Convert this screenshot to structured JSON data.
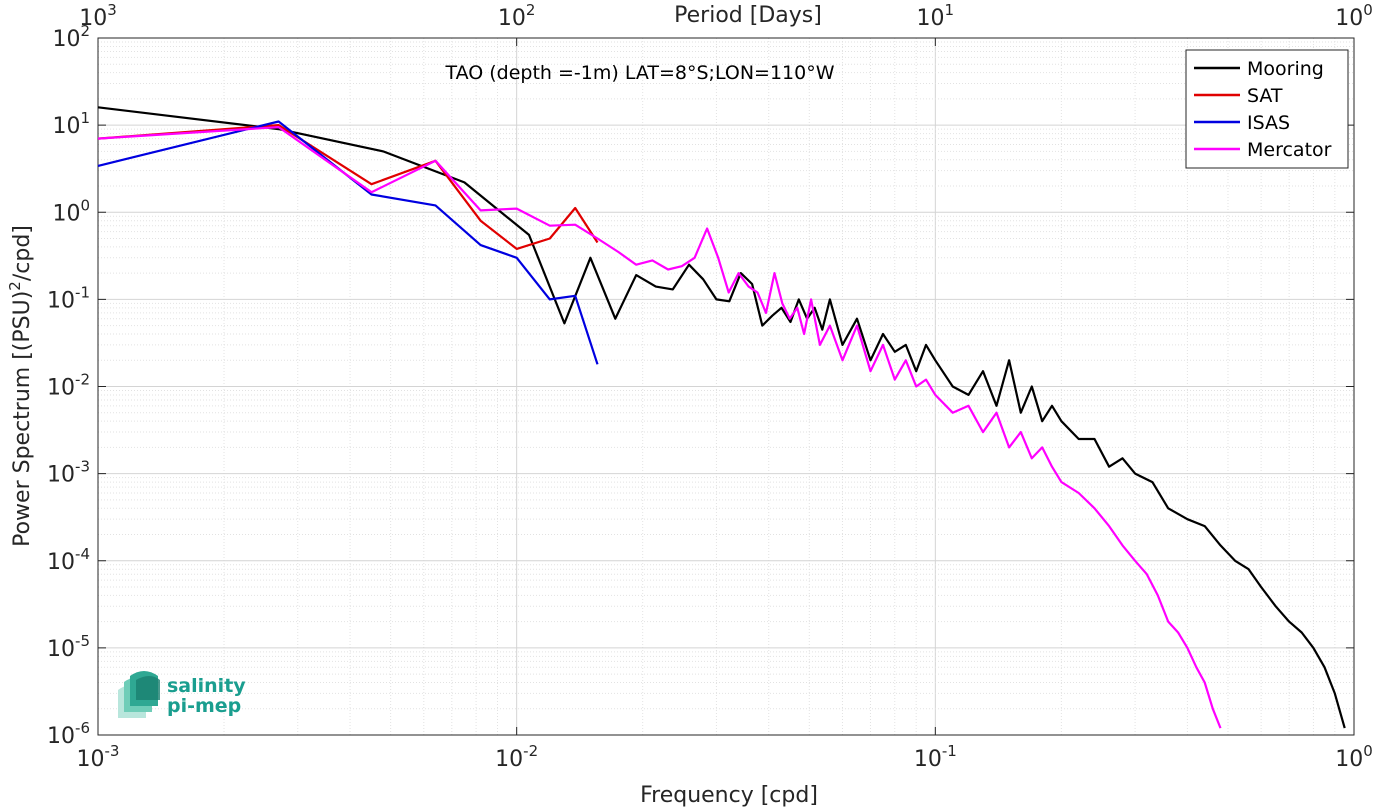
{
  "chart_data": {
    "type": "line",
    "annotation": "TAO (depth =-1m) LAT=8°S;LON=110°W",
    "xlabel": "Frequency [cpd]",
    "ylabel": "Power Spectrum [(PSU)",
    "ylabel_exp": "2",
    "ylabel_tail": "/cpd]",
    "top_xlabel": "Period [Days]",
    "xscale": "log",
    "yscale": "log",
    "xlim": [
      0.001,
      1
    ],
    "ylim": [
      1e-06,
      100
    ],
    "grid": true,
    "minor_grid": true,
    "legend_position": "top-right",
    "x_ticks": [
      {
        "base": "10",
        "exp": "-3",
        "value": 0.001
      },
      {
        "base": "10",
        "exp": "-2",
        "value": 0.01
      },
      {
        "base": "10",
        "exp": "-1",
        "value": 0.1
      },
      {
        "base": "10",
        "exp": "0",
        "value": 1
      }
    ],
    "y_ticks": [
      {
        "base": "10",
        "exp": "2",
        "value": 100
      },
      {
        "base": "10",
        "exp": "1",
        "value": 10
      },
      {
        "base": "10",
        "exp": "0",
        "value": 1
      },
      {
        "base": "10",
        "exp": "-1",
        "value": 0.1
      },
      {
        "base": "10",
        "exp": "-2",
        "value": 0.01
      },
      {
        "base": "10",
        "exp": "-3",
        "value": 0.001
      },
      {
        "base": "10",
        "exp": "-4",
        "value": 0.0001
      },
      {
        "base": "10",
        "exp": "-5",
        "value": 1e-05
      },
      {
        "base": "10",
        "exp": "-6",
        "value": 1e-06
      }
    ],
    "top_ticks": [
      {
        "base": "10",
        "exp": "3",
        "value": 1000
      },
      {
        "base": "10",
        "exp": "2",
        "value": 100
      },
      {
        "base": "10",
        "exp": "1",
        "value": 10
      },
      {
        "base": "10",
        "exp": "0",
        "value": 1
      }
    ],
    "series": [
      {
        "name": "Mooring",
        "color": "#000000",
        "x": [
          0.001,
          0.0027,
          0.0048,
          0.0075,
          0.0107,
          0.013,
          0.015,
          0.0172,
          0.0193,
          0.0215,
          0.0236,
          0.0258,
          0.0279,
          0.03,
          0.0322,
          0.0343,
          0.0365,
          0.0386,
          0.0408,
          0.0429,
          0.0451,
          0.0472,
          0.0494,
          0.0515,
          0.0537,
          0.056,
          0.06,
          0.065,
          0.07,
          0.075,
          0.08,
          0.085,
          0.09,
          0.095,
          0.1,
          0.11,
          0.12,
          0.13,
          0.14,
          0.15,
          0.16,
          0.17,
          0.18,
          0.19,
          0.2,
          0.22,
          0.24,
          0.26,
          0.28,
          0.3,
          0.33,
          0.36,
          0.4,
          0.44,
          0.48,
          0.52,
          0.56,
          0.6,
          0.65,
          0.7,
          0.75,
          0.8,
          0.85,
          0.9,
          0.95
        ],
        "y": [
          16,
          9,
          5,
          2.2,
          0.55,
          0.053,
          0.3,
          0.06,
          0.19,
          0.14,
          0.13,
          0.25,
          0.17,
          0.1,
          0.095,
          0.2,
          0.15,
          0.05,
          0.065,
          0.08,
          0.055,
          0.1,
          0.06,
          0.08,
          0.045,
          0.1,
          0.03,
          0.06,
          0.02,
          0.04,
          0.025,
          0.03,
          0.015,
          0.03,
          0.02,
          0.01,
          0.008,
          0.015,
          0.006,
          0.02,
          0.005,
          0.01,
          0.004,
          0.006,
          0.004,
          0.0025,
          0.0025,
          0.0012,
          0.0015,
          0.001,
          0.0008,
          0.0004,
          0.0003,
          0.00025,
          0.00015,
          0.0001,
          8e-05,
          5e-05,
          3e-05,
          2e-05,
          1.5e-05,
          1e-05,
          6e-06,
          3e-06,
          1.2e-06
        ]
      },
      {
        "name": "SAT",
        "color": "#e00000",
        "x": [
          0.001,
          0.0027,
          0.0045,
          0.0064,
          0.0082,
          0.01,
          0.012,
          0.0138,
          0.0156
        ],
        "y": [
          7,
          10,
          2.1,
          3.9,
          0.8,
          0.38,
          0.5,
          1.12,
          0.45
        ]
      },
      {
        "name": "ISAS",
        "color": "#0000e0",
        "x": [
          0.001,
          0.0027,
          0.0045,
          0.0064,
          0.0082,
          0.01,
          0.012,
          0.0138,
          0.0156
        ],
        "y": [
          3.4,
          11,
          1.6,
          1.2,
          0.42,
          0.3,
          0.1,
          0.11,
          0.018
        ]
      },
      {
        "name": "Mercator",
        "color": "#ff00ff",
        "x": [
          0.001,
          0.0027,
          0.0045,
          0.0064,
          0.0082,
          0.01,
          0.012,
          0.0138,
          0.0156,
          0.0175,
          0.0193,
          0.0211,
          0.023,
          0.0248,
          0.0266,
          0.0285,
          0.0303,
          0.0321,
          0.0339,
          0.0358,
          0.0376,
          0.0394,
          0.0413,
          0.0431,
          0.0449,
          0.0468,
          0.0486,
          0.0505,
          0.053,
          0.056,
          0.06,
          0.065,
          0.07,
          0.075,
          0.08,
          0.085,
          0.09,
          0.095,
          0.1,
          0.11,
          0.12,
          0.13,
          0.14,
          0.15,
          0.16,
          0.17,
          0.18,
          0.19,
          0.2,
          0.22,
          0.24,
          0.26,
          0.28,
          0.3,
          0.32,
          0.34,
          0.36,
          0.38,
          0.4,
          0.42,
          0.44,
          0.46,
          0.48
        ],
        "y": [
          7,
          9.5,
          1.7,
          3.9,
          1.05,
          1.1,
          0.7,
          0.72,
          0.5,
          0.35,
          0.25,
          0.28,
          0.22,
          0.24,
          0.3,
          0.65,
          0.3,
          0.12,
          0.2,
          0.14,
          0.12,
          0.07,
          0.2,
          0.09,
          0.06,
          0.08,
          0.04,
          0.1,
          0.03,
          0.05,
          0.02,
          0.05,
          0.015,
          0.03,
          0.012,
          0.02,
          0.01,
          0.012,
          0.008,
          0.005,
          0.006,
          0.003,
          0.005,
          0.002,
          0.003,
          0.0015,
          0.002,
          0.0012,
          0.0008,
          0.0006,
          0.0004,
          0.00025,
          0.00015,
          0.0001,
          7e-05,
          4e-05,
          2e-05,
          1.5e-05,
          1e-05,
          6e-06,
          4e-06,
          2e-06,
          1.2e-06
        ]
      }
    ]
  },
  "logo": {
    "line1": "salinity",
    "line2": "pi-mep",
    "color": "#1a9e8f"
  }
}
